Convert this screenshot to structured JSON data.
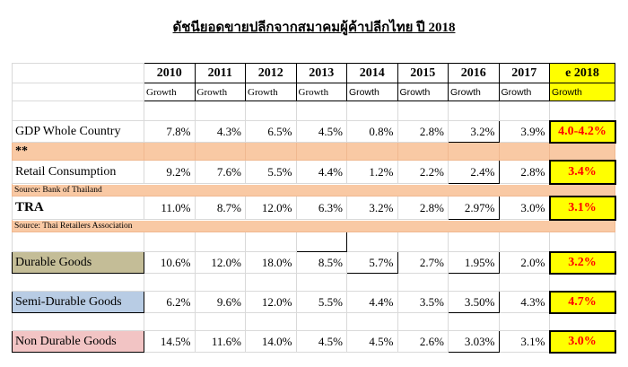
{
  "title": "ดัชนียอดขายปลีกจากสมาคมผู้ค้าปลีกไทย ปี 2018",
  "years": [
    "2010",
    "2011",
    "2012",
    "2013",
    "2014",
    "2015",
    "2016",
    "2017",
    "e 2018"
  ],
  "growth_label": "Growth",
  "rows": {
    "gdp": {
      "label": "GDP Whole Country",
      "values": [
        "7.8%",
        "4.3%",
        "6.5%",
        "4.5%",
        "0.8%",
        "2.8%",
        "3.2%",
        "3.9%"
      ],
      "estimate": "4.0-4.2%"
    },
    "stars": "**",
    "retail": {
      "label": "Retail Consumption",
      "values": [
        "9.2%",
        "7.6%",
        "5.5%",
        "4.4%",
        "1.2%",
        "2.2%",
        "2.4%",
        "2.8%"
      ],
      "estimate": "3.4%"
    },
    "source_bot": "Source: Bank of Thailand",
    "tra": {
      "label": "TRA",
      "values": [
        "11.0%",
        "8.7%",
        "12.0%",
        "6.3%",
        "3.2%",
        "2.8%",
        "2.97%",
        "3.0%"
      ],
      "estimate": "3.1%"
    },
    "source_tra": "Source: Thai Retailers Association",
    "durable": {
      "label": "Durable Goods",
      "values": [
        "10.6%",
        "12.0%",
        "18.0%",
        "8.5%",
        "5.7%",
        "2.7%",
        "1.95%",
        "2.0%"
      ],
      "estimate": "3.2%"
    },
    "semi": {
      "label": "Semi-Durable Goods",
      "values": [
        "6.2%",
        "9.6%",
        "12.0%",
        "5.5%",
        "4.4%",
        "3.5%",
        "3.50%",
        "4.3%"
      ],
      "estimate": "4.7%"
    },
    "non": {
      "label": "Non Durable Goods",
      "values": [
        "14.5%",
        "11.6%",
        "14.0%",
        "4.5%",
        "4.5%",
        "2.6%",
        "3.03%",
        "3.1%"
      ],
      "estimate": "3.0%"
    }
  },
  "colors": {
    "peach": "#f9c9a4",
    "yellow": "#ffff00",
    "tan": "#c4bd97",
    "blue": "#b8cce4",
    "pink": "#f2c4c4",
    "estimate_text": "#ff0000"
  }
}
